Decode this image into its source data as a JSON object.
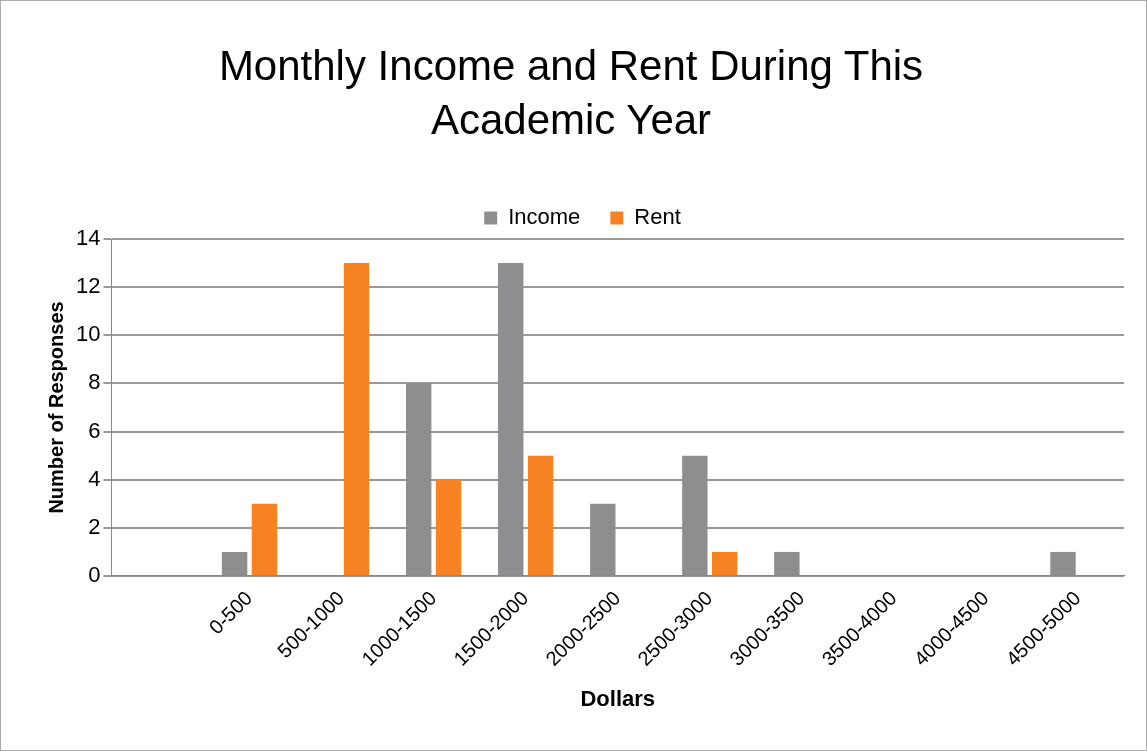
{
  "chart_data": {
    "type": "bar",
    "title": "Monthly Income and Rent During This Academic Year",
    "xlabel": "Dollars",
    "ylabel": "Number of Responses",
    "categories": [
      null,
      "0-500",
      "500-1000",
      "1000-1500",
      "1500-2000",
      "2000-2500",
      "2500-3000",
      "3000-3500",
      "3500-4000",
      "4000-4500",
      "4500-5000"
    ],
    "series": [
      {
        "name": "Income",
        "color": "#8e8e91",
        "values": [
          null,
          1,
          0,
          8,
          13,
          3,
          5,
          1,
          0,
          0,
          1
        ]
      },
      {
        "name": "Rent",
        "color": "#f68222",
        "values": [
          null,
          3,
          13,
          4,
          5,
          0,
          1,
          0,
          0,
          0,
          0
        ]
      }
    ],
    "ylim": [
      0,
      14
    ],
    "yticks": [
      0,
      2,
      4,
      6,
      8,
      10,
      12,
      14
    ],
    "grid": "y",
    "legend": "top"
  }
}
